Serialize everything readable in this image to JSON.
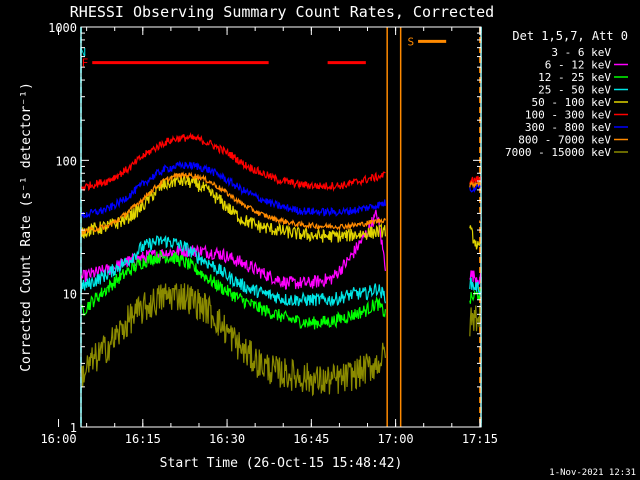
{
  "chart_data": {
    "type": "line",
    "title": "RHESSI Observing Summary Count Rates, Corrected",
    "xlabel": "Start Time (26-Oct-15 15:48:42)",
    "ylabel": "Corrected Count Rate (s⁻¹ detector⁻¹)",
    "ylog": true,
    "ylim": [
      1,
      1000
    ],
    "xlim_minutes": [
      15.3,
      86.5
    ],
    "x_ticks": [
      {
        "label": "16:00",
        "min": 11.3
      },
      {
        "label": "16:15",
        "min": 26.3
      },
      {
        "label": "16:30",
        "min": 41.3
      },
      {
        "label": "16:45",
        "min": 56.3
      },
      {
        "label": "17:00",
        "min": 71.3
      },
      {
        "label": "17:15",
        "min": 86.3
      }
    ],
    "y_ticks": [
      {
        "label": "1",
        "value": 1
      },
      {
        "label": "10",
        "value": 10
      },
      {
        "label": "100",
        "value": 100
      },
      {
        "label": "1000",
        "value": 1000
      }
    ],
    "legend_title": "Det 1,5,7, Att 0",
    "legend_position": "right-outside",
    "footer_date": "1-Nov-2021 12:31",
    "flags": [
      {
        "label": "N",
        "color": "#00e5e5",
        "y": 650,
        "segments": [
          [
            -0.3,
            14.3
          ],
          [
            89.2,
            103.0
          ]
        ]
      },
      {
        "label": "F",
        "color": "#ff0000",
        "y": 540,
        "segments": [
          [
            17.3,
            48.7
          ],
          [
            59.2,
            66.0
          ]
        ]
      },
      {
        "label": "S",
        "color": "#ff8a00",
        "y": 780,
        "segments": [
          [
            75.3,
            80.3
          ]
        ]
      }
    ],
    "vlines": [
      {
        "t": -0.3,
        "color": "#00e5e5",
        "style": "solid"
      },
      {
        "t": 14.3,
        "color": "#00e5e5",
        "style": "dashed"
      },
      {
        "t": 89.2,
        "color": "#00e5e5",
        "style": "solid"
      },
      {
        "t": 103.0,
        "color": "#00e5e5",
        "style": "dashed"
      },
      {
        "t": 69.8,
        "color": "#ff8a00",
        "style": "solid"
      },
      {
        "t": 72.2,
        "color": "#ff8a00",
        "style": "solid"
      },
      {
        "t": 86.3,
        "color": "#ff8a00",
        "style": "dashed"
      }
    ],
    "series": [
      {
        "name": "3 - 6 keV",
        "color": "#000000",
        "noise": 0.05,
        "segments": [
          {
            "t": [
              11.4,
              13,
              15,
              17,
              20,
              23,
              27,
              30,
              33,
              36,
              40,
              44,
              48,
              52,
              56,
              60,
              63,
              66,
              68,
              69.5
            ],
            "v": [
              58,
              65,
              55,
              48,
              42,
              38,
              36,
              35,
              35,
              34,
              33,
              32,
              32,
              32,
              33,
              34,
              40,
              55,
              80,
              50
            ]
          },
          {
            "t": [
              84.5,
              86,
              88,
              91,
              93
            ],
            "v": [
              60,
              40,
              35,
              36,
              36
            ]
          }
        ]
      },
      {
        "name": "6 - 12 keV",
        "color": "#ff00ff",
        "noise": 0.05,
        "segments": [
          {
            "t": [
              11.4,
              13,
              15,
              17,
              20,
              23,
              27,
              30,
              33,
              36,
              40,
              44,
              48,
              52,
              56,
              60,
              63,
              66,
              68,
              69.5
            ],
            "v": [
              12,
              13,
              13,
              14,
              15,
              17,
              19,
              20,
              21,
              21,
              20,
              17,
              14,
              12,
              12,
              13,
              18,
              28,
              40,
              16
            ]
          },
          {
            "t": [
              84.5,
              86,
              88,
              91,
              93
            ],
            "v": [
              14,
              13,
              12,
              12,
              12
            ]
          }
        ]
      },
      {
        "name": "12 - 25 keV",
        "color": "#00ff00",
        "noise": 0.05,
        "segments": [
          {
            "t": [
              11.4,
              13,
              15,
              17,
              20,
              22,
              24,
              26,
              28,
              30,
              32,
              34,
              36,
              39,
              42,
              45,
              48,
              52,
              56,
              60,
              64,
              66,
              68,
              69.5
            ],
            "v": [
              5.5,
              6.2,
              7.0,
              8.5,
              11,
              13,
              15,
              17,
              18.5,
              19,
              18.5,
              17,
              15,
              12,
              10,
              8.5,
              7.5,
              6.5,
              6,
              6.2,
              7,
              7.5,
              8.5,
              7
            ]
          },
          {
            "t": [
              84.5,
              86,
              88,
              91,
              93
            ],
            "v": [
              9,
              10,
              9,
              9,
              9
            ]
          }
        ]
      },
      {
        "name": "25 - 50 keV",
        "color": "#00e5e5",
        "noise": 0.05,
        "segments": [
          {
            "t": [
              11.4,
              13,
              15,
              17,
              20,
              22,
              24,
              26,
              28,
              30,
              32,
              34,
              36,
              39,
              42,
              45,
              48,
              52,
              56,
              60,
              64,
              66,
              68,
              69.5
            ],
            "v": [
              9,
              10,
              11,
              12,
              14,
              16,
              18,
              22,
              24,
              25,
              24,
              22,
              19,
              16,
              13,
              11,
              10,
              9,
              9,
              9,
              10,
              10,
              11,
              9.5
            ]
          },
          {
            "t": [
              84.5,
              86,
              88,
              91,
              93
            ],
            "v": [
              12,
              11,
              10,
              10,
              10
            ]
          }
        ]
      },
      {
        "name": "50 - 100 keV",
        "color": "#e0d400",
        "noise": 0.05,
        "segments": [
          {
            "t": [
              11.4,
              13,
              15,
              17,
              20,
              22,
              24,
              26,
              28,
              30,
              32,
              34,
              36,
              38,
              40,
              42,
              44,
              47,
              50,
              54,
              58,
              62,
              65,
              68,
              69.5
            ],
            "v": [
              32,
              30,
              29,
              30,
              32,
              34,
              38,
              44,
              55,
              65,
              70,
              70,
              66,
              58,
              50,
              42,
              36,
              32,
              30,
              28,
              27,
              27,
              28,
              29,
              30
            ]
          },
          {
            "t": [
              84.5,
              86,
              88,
              91,
              93
            ],
            "v": [
              30,
              22,
              20,
              20,
              20
            ]
          }
        ]
      },
      {
        "name": "100 - 300 keV",
        "color": "#ff0000",
        "noise": 0.03,
        "segments": [
          {
            "t": [
              11.4,
              13,
              15,
              17,
              20,
              22,
              24,
              26,
              28,
              30,
              32,
              34,
              36,
              38,
              40,
              42,
              44,
              47,
              50,
              54,
              58,
              62,
              65,
              68,
              69.5
            ],
            "v": [
              58,
              60,
              62,
              65,
              70,
              78,
              88,
              105,
              120,
              135,
              145,
              148,
              145,
              135,
              122,
              110,
              95,
              82,
              72,
              66,
              64,
              65,
              70,
              75,
              78
            ]
          },
          {
            "t": [
              84.5,
              86,
              88,
              91,
              93
            ],
            "v": [
              70,
              72,
              74,
              75,
              76
            ]
          }
        ]
      },
      {
        "name": "300 - 800 keV",
        "color": "#0000ff",
        "noise": 0.03,
        "segments": [
          {
            "t": [
              11.4,
              13,
              15,
              17,
              20,
              22,
              24,
              26,
              28,
              30,
              32,
              34,
              36,
              38,
              40,
              42,
              44,
              47,
              50,
              54,
              58,
              62,
              65,
              68,
              69.5
            ],
            "v": [
              37,
              38,
              38,
              40,
              43,
              48,
              55,
              65,
              75,
              85,
              90,
              92,
              90,
              85,
              77,
              68,
              60,
              52,
              46,
              42,
              41,
              41,
              43,
              46,
              48
            ]
          },
          {
            "t": [
              84.5,
              86,
              88,
              91,
              93
            ],
            "v": [
              60,
              65,
              68,
              70,
              72
            ]
          }
        ]
      },
      {
        "name": "800 - 7000 keV",
        "color": "#ff8a00",
        "noise": 0.02,
        "segments": [
          {
            "t": [
              11.4,
              13,
              15,
              17,
              20,
              22,
              24,
              26,
              28,
              30,
              32,
              34,
              36,
              38,
              40,
              42,
              44,
              47,
              50,
              54,
              58,
              62,
              65,
              68,
              69.5
            ],
            "v": [
              28,
              28.5,
              29,
              30,
              32,
              36,
              42,
              50,
              60,
              70,
              76,
              78,
              76,
              70,
              62,
              54,
              47,
              40,
              36,
              33,
              32,
              32,
              33,
              35,
              36
            ]
          },
          {
            "t": [
              84.5,
              86,
              88,
              91,
              93
            ],
            "v": [
              65,
              68,
              70,
              72,
              74
            ]
          }
        ]
      },
      {
        "name": "7000 - 15000 keV",
        "color": "#8a8a00",
        "noise": 0.12,
        "segments": [
          {
            "t": [
              11.4,
              13,
              15,
              17,
              20,
              22,
              24,
              26,
              28,
              30,
              32,
              34,
              36,
              38,
              40,
              42,
              44,
              47,
              50,
              54,
              58,
              62,
              65,
              68,
              69.5
            ],
            "v": [
              1.6,
              2.0,
              2.3,
              3.0,
              4.0,
              5.0,
              6.5,
              7.5,
              8.5,
              9.5,
              9.8,
              9.5,
              8.5,
              7.5,
              6.0,
              4.8,
              3.8,
              3.0,
              2.6,
              2.4,
              2.2,
              2.3,
              2.6,
              3.0,
              3.5
            ]
          },
          {
            "t": [
              84.5,
              86,
              88,
              91,
              93
            ],
            "v": [
              6,
              7,
              7,
              7,
              7
            ]
          }
        ]
      }
    ]
  }
}
